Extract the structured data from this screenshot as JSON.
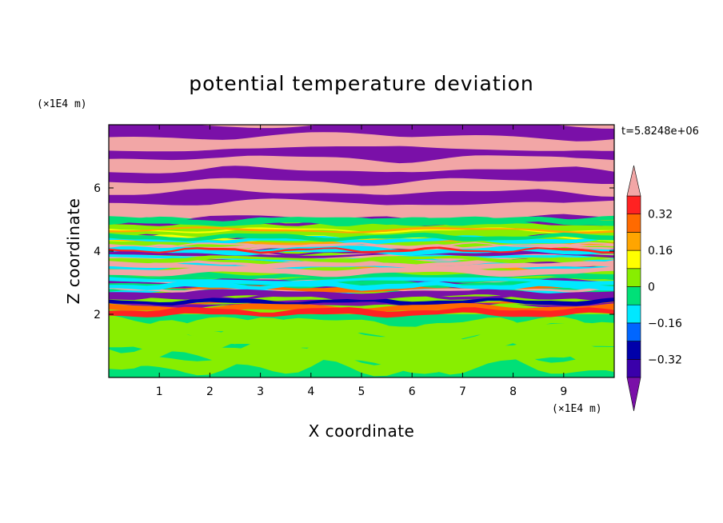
{
  "chart_data": {
    "type": "heatmap",
    "title": "potential temperature deviation",
    "xlabel": "X coordinate",
    "ylabel": "Z coordinate",
    "x_unit": "(×1E4 m)",
    "y_unit": "(×1E4 m)",
    "time_label": "t=5.8248e+06",
    "xlim": [
      0,
      10
    ],
    "ylim": [
      0,
      8
    ],
    "x_ticks": [
      "1",
      "2",
      "3",
      "4",
      "5",
      "6",
      "7",
      "8",
      "9"
    ],
    "y_ticks": [
      "2",
      "4",
      "6"
    ],
    "colorbar": {
      "levels": [
        -0.4,
        -0.32,
        -0.24,
        -0.16,
        -0.08,
        0,
        0.08,
        0.16,
        0.24,
        0.32,
        0.4
      ],
      "tick_labels": [
        "0.32",
        "0.16",
        "0",
        "−0.16",
        "−0.32"
      ],
      "tick_values": [
        0.32,
        0.16,
        0,
        -0.16,
        -0.32
      ],
      "colors": {
        "over": "#f2a6a6",
        "l9": "#ff2222",
        "l8": "#ff6a00",
        "l7": "#ffa500",
        "l6": "#ffff00",
        "l5": "#88ee00",
        "l4": "#00e078",
        "l3": "#00e8ff",
        "l2": "#0066ff",
        "l1": "#0000aa",
        "l0": "#3a00aa",
        "under": "#7a10a8"
      }
    },
    "regions": [
      {
        "zone": "upper",
        "z_range": [
          5.0,
          8.0
        ],
        "description_colors": [
          "over",
          "under"
        ]
      },
      {
        "zone": "mixed",
        "z_range": [
          2.0,
          5.0
        ],
        "description_colors": [
          "over",
          "l9",
          "l8",
          "l7",
          "l6",
          "l5",
          "l4",
          "l3",
          "l2",
          "l1",
          "under"
        ]
      },
      {
        "zone": "lower",
        "z_range": [
          0.0,
          2.0
        ],
        "description_colors": [
          "l4",
          "l5"
        ]
      }
    ]
  }
}
